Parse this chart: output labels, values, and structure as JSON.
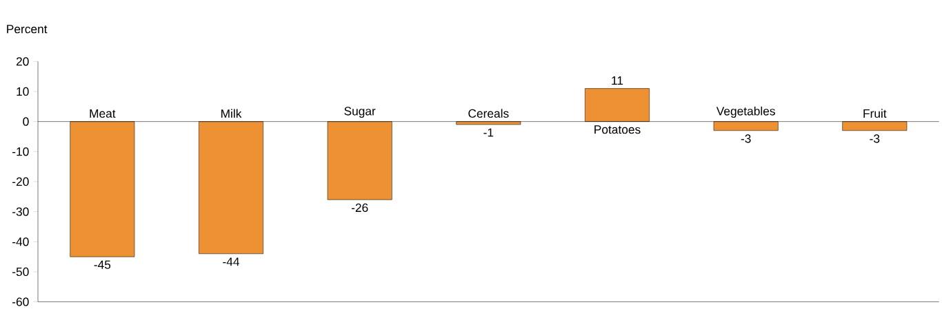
{
  "chart_data": {
    "type": "bar",
    "ylabel": "Percent",
    "categories": [
      "Meat",
      "Milk",
      "Sugar",
      "Cereals",
      "Potatoes",
      "Vegetables",
      "Fruit"
    ],
    "values": [
      -45,
      -44,
      -26,
      -1,
      11,
      -3,
      -3
    ],
    "value_labels": [
      "-45",
      "-44",
      "-26",
      "-1",
      "11",
      "-3",
      "-3"
    ],
    "color": "#ee9133",
    "ylim": [
      -60,
      20
    ],
    "yticks": [
      -60,
      -50,
      -40,
      -30,
      -20,
      -10,
      0,
      10,
      20
    ]
  }
}
